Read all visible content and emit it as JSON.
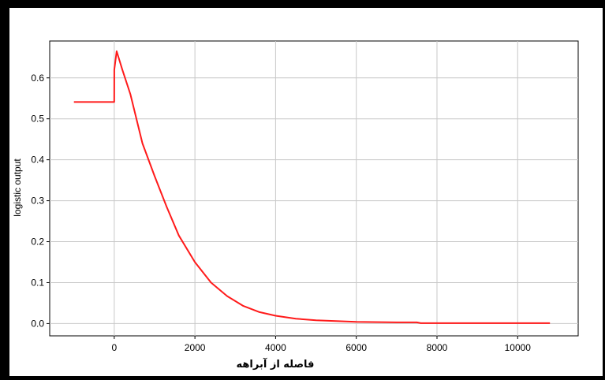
{
  "chart_data": {
    "type": "line",
    "title": "",
    "xlabel": "فاصله از آبراهه",
    "ylabel": "logistic output",
    "xlim": [
      -1600,
      11500
    ],
    "ylim": [
      -0.03,
      0.69
    ],
    "xticks": [
      0,
      2000,
      4000,
      6000,
      8000,
      10000
    ],
    "xtick_labels": [
      "0",
      "2000",
      "4000",
      "6000",
      "8000",
      "10000"
    ],
    "yticks": [
      0.0,
      0.1,
      0.2,
      0.3,
      0.4,
      0.5,
      0.6
    ],
    "ytick_labels": [
      "0.0",
      "0.1",
      "0.2",
      "0.3",
      "0.4",
      "0.5",
      "0.6"
    ],
    "grid": true,
    "legend": "none",
    "series": [
      {
        "color": "#ff1a1a",
        "x": [
          -1000,
          -500,
          0,
          1,
          60,
          200,
          400,
          700,
          1000,
          1300,
          1600,
          2000,
          2400,
          2800,
          3200,
          3600,
          4000,
          4500,
          5000,
          5500,
          6000,
          7000,
          7500,
          7600,
          8000,
          9000,
          10000,
          10800
        ],
        "y": [
          0.541,
          0.541,
          0.541,
          0.62,
          0.665,
          0.62,
          0.56,
          0.44,
          0.36,
          0.285,
          0.215,
          0.15,
          0.1,
          0.067,
          0.043,
          0.028,
          0.019,
          0.012,
          0.008,
          0.006,
          0.004,
          0.003,
          0.003,
          0.001,
          0.001,
          0.001,
          0.001,
          0.001
        ]
      }
    ]
  }
}
